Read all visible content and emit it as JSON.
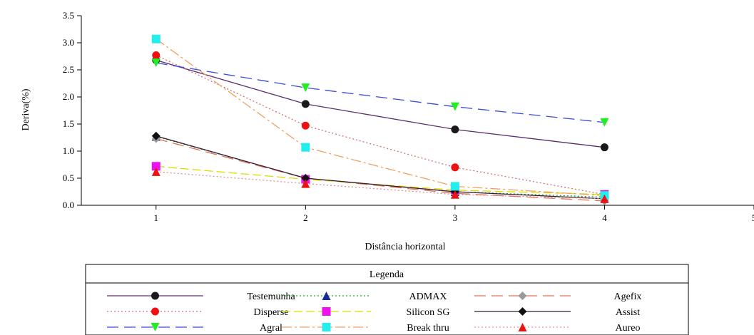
{
  "chart_data": {
    "type": "line",
    "title": "",
    "xlabel": "Distância horizontal",
    "ylabel": "Deriva(%)",
    "xlim": [
      0.5,
      5
    ],
    "ylim": [
      0,
      3.5
    ],
    "x_ticks": [
      "1",
      "2",
      "3",
      "4",
      "5"
    ],
    "y_ticks": [
      "0.0",
      "0.5",
      "1.0",
      "1.5",
      "2.0",
      "2.5",
      "3.0",
      "3.5"
    ],
    "x": [
      1,
      2,
      3,
      4
    ],
    "legend_title": "Legenda",
    "legend_placement": "bottom",
    "series": [
      {
        "name": "Testemunha",
        "values": [
          2.68,
          1.87,
          1.4,
          1.07
        ],
        "color": "#1a1a1a",
        "marker": "circle",
        "line": "#5a2d6e",
        "dash": ""
      },
      {
        "name": "ADMAX",
        "values": [
          1.27,
          0.5,
          0.25,
          0.15
        ],
        "color": "#1a2a9a",
        "marker": "triangle",
        "line": "#22aa22",
        "dash": "2,3"
      },
      {
        "name": "Agefix",
        "values": [
          1.23,
          0.5,
          0.22,
          0.08
        ],
        "color": "#9a9a9a",
        "marker": "diamond",
        "line": "#e07050",
        "dash": "16,8"
      },
      {
        "name": "Disperse",
        "values": [
          2.77,
          1.47,
          0.7,
          0.2
        ],
        "color": "#ee1111",
        "marker": "circle",
        "line": "#d07070",
        "dash": "2,3"
      },
      {
        "name": "Silicon SG",
        "values": [
          0.72,
          0.48,
          0.28,
          0.2
        ],
        "color": "#ee11ee",
        "marker": "square",
        "line": "#dddd00",
        "dash": "12,5"
      },
      {
        "name": "Assist",
        "values": [
          1.28,
          0.5,
          0.25,
          0.12
        ],
        "color": "#111111",
        "marker": "diamond",
        "line": "#3a1a3a",
        "dash": ""
      },
      {
        "name": "Agral",
        "values": [
          2.63,
          2.17,
          1.82,
          1.53
        ],
        "color": "#22ee22",
        "marker": "triangle-down",
        "line": "#3a4adb",
        "dash": "16,8"
      },
      {
        "name": "Break thru",
        "values": [
          3.07,
          1.07,
          0.35,
          0.18
        ],
        "color": "#22eeee",
        "marker": "square",
        "line": "#f0a060",
        "dash": "14,4,3,4"
      },
      {
        "name": "Aureo",
        "values": [
          0.62,
          0.4,
          0.2,
          0.12
        ],
        "color": "#ee1111",
        "marker": "triangle",
        "line": "#e09090",
        "dash": "2,3"
      }
    ]
  }
}
